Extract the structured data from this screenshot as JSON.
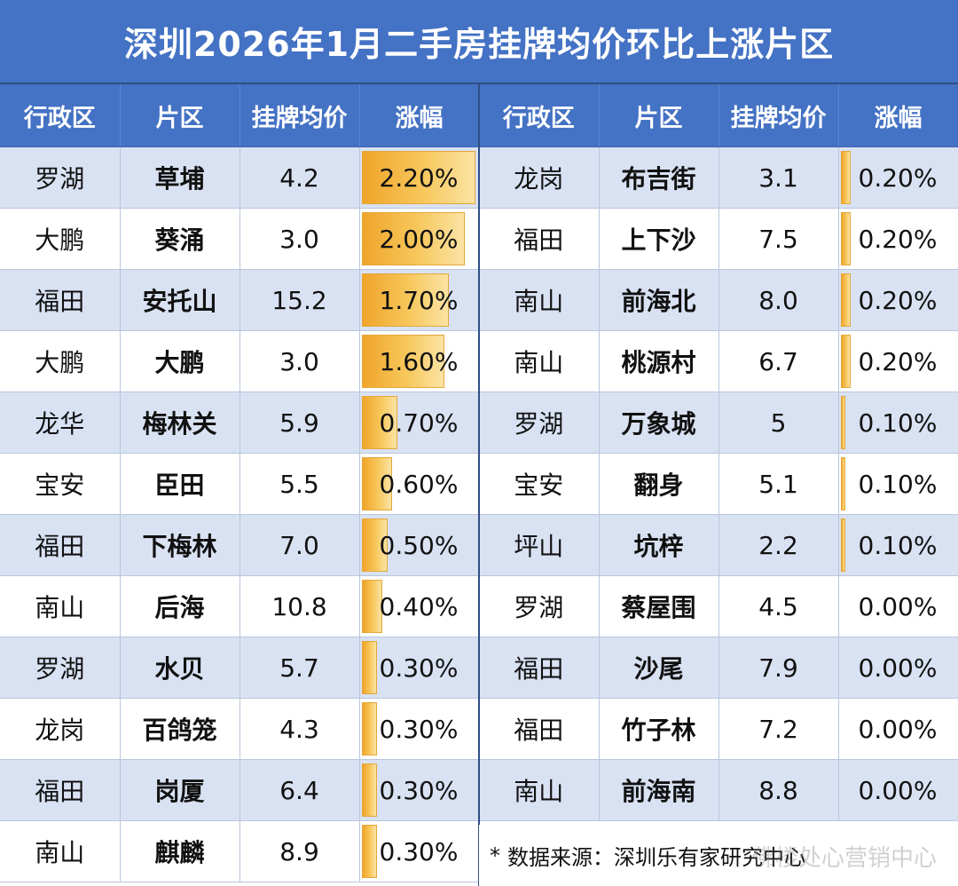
{
  "title": "深圳2026年1月二手房挂牌均价环比上涨片区",
  "headers": [
    "行政区",
    "片区",
    "挂牌均价",
    "涨幅"
  ],
  "bar_color": "#f0a52a",
  "header_color": "#4472c4",
  "shade_color": "#d9e2f3",
  "left_rows": [
    {
      "district": "罗湖",
      "area": "草埔",
      "price": "4.2",
      "change": "2.20%",
      "value": 2.2
    },
    {
      "district": "大鹏",
      "area": "葵涌",
      "price": "3.0",
      "change": "2.00%",
      "value": 2.0
    },
    {
      "district": "福田",
      "area": "安托山",
      "price": "15.2",
      "change": "1.70%",
      "value": 1.7
    },
    {
      "district": "大鹏",
      "area": "大鹏",
      "price": "3.0",
      "change": "1.60%",
      "value": 1.6
    },
    {
      "district": "龙华",
      "area": "梅林关",
      "price": "5.9",
      "change": "0.70%",
      "value": 0.7
    },
    {
      "district": "宝安",
      "area": "臣田",
      "price": "5.5",
      "change": "0.60%",
      "value": 0.6
    },
    {
      "district": "福田",
      "area": "下梅林",
      "price": "7.0",
      "change": "0.50%",
      "value": 0.5
    },
    {
      "district": "南山",
      "area": "后海",
      "price": "10.8",
      "change": "0.40%",
      "value": 0.4
    },
    {
      "district": "罗湖",
      "area": "水贝",
      "price": "5.7",
      "change": "0.30%",
      "value": 0.3
    },
    {
      "district": "龙岗",
      "area": "百鸽笼",
      "price": "4.3",
      "change": "0.30%",
      "value": 0.3
    },
    {
      "district": "福田",
      "area": "岗厦",
      "price": "6.4",
      "change": "0.30%",
      "value": 0.3
    },
    {
      "district": "南山",
      "area": "麒麟",
      "price": "8.9",
      "change": "0.30%",
      "value": 0.3
    }
  ],
  "right_rows": [
    {
      "district": "龙岗",
      "area": "布吉街",
      "price": "3.1",
      "change": "0.20%",
      "value": 0.2
    },
    {
      "district": "福田",
      "area": "上下沙",
      "price": "7.5",
      "change": "0.20%",
      "value": 0.2
    },
    {
      "district": "南山",
      "area": "前海北",
      "price": "8.0",
      "change": "0.20%",
      "value": 0.2
    },
    {
      "district": "南山",
      "area": "桃源村",
      "price": "6.7",
      "change": "0.20%",
      "value": 0.2
    },
    {
      "district": "罗湖",
      "area": "万象城",
      "price": "5",
      "change": "0.10%",
      "value": 0.1
    },
    {
      "district": "宝安",
      "area": "翻身",
      "price": "5.1",
      "change": "0.10%",
      "value": 0.1
    },
    {
      "district": "坪山",
      "area": "坑梓",
      "price": "2.2",
      "change": "0.10%",
      "value": 0.1
    },
    {
      "district": "罗湖",
      "area": "蔡屋围",
      "price": "4.5",
      "change": "0.00%",
      "value": 0.0
    },
    {
      "district": "福田",
      "area": "沙尾",
      "price": "7.9",
      "change": "0.00%",
      "value": 0.0
    },
    {
      "district": "福田",
      "area": "竹子林",
      "price": "7.2",
      "change": "0.00%",
      "value": 0.0
    },
    {
      "district": "南山",
      "area": "前海南",
      "price": "8.8",
      "change": "0.00%",
      "value": 0.0
    }
  ],
  "source_mark": "*",
  "source_text": "数据来源：深圳乐有家研究中心",
  "watermark": "佛楼处心营销中心",
  "max_change": 2.2
}
